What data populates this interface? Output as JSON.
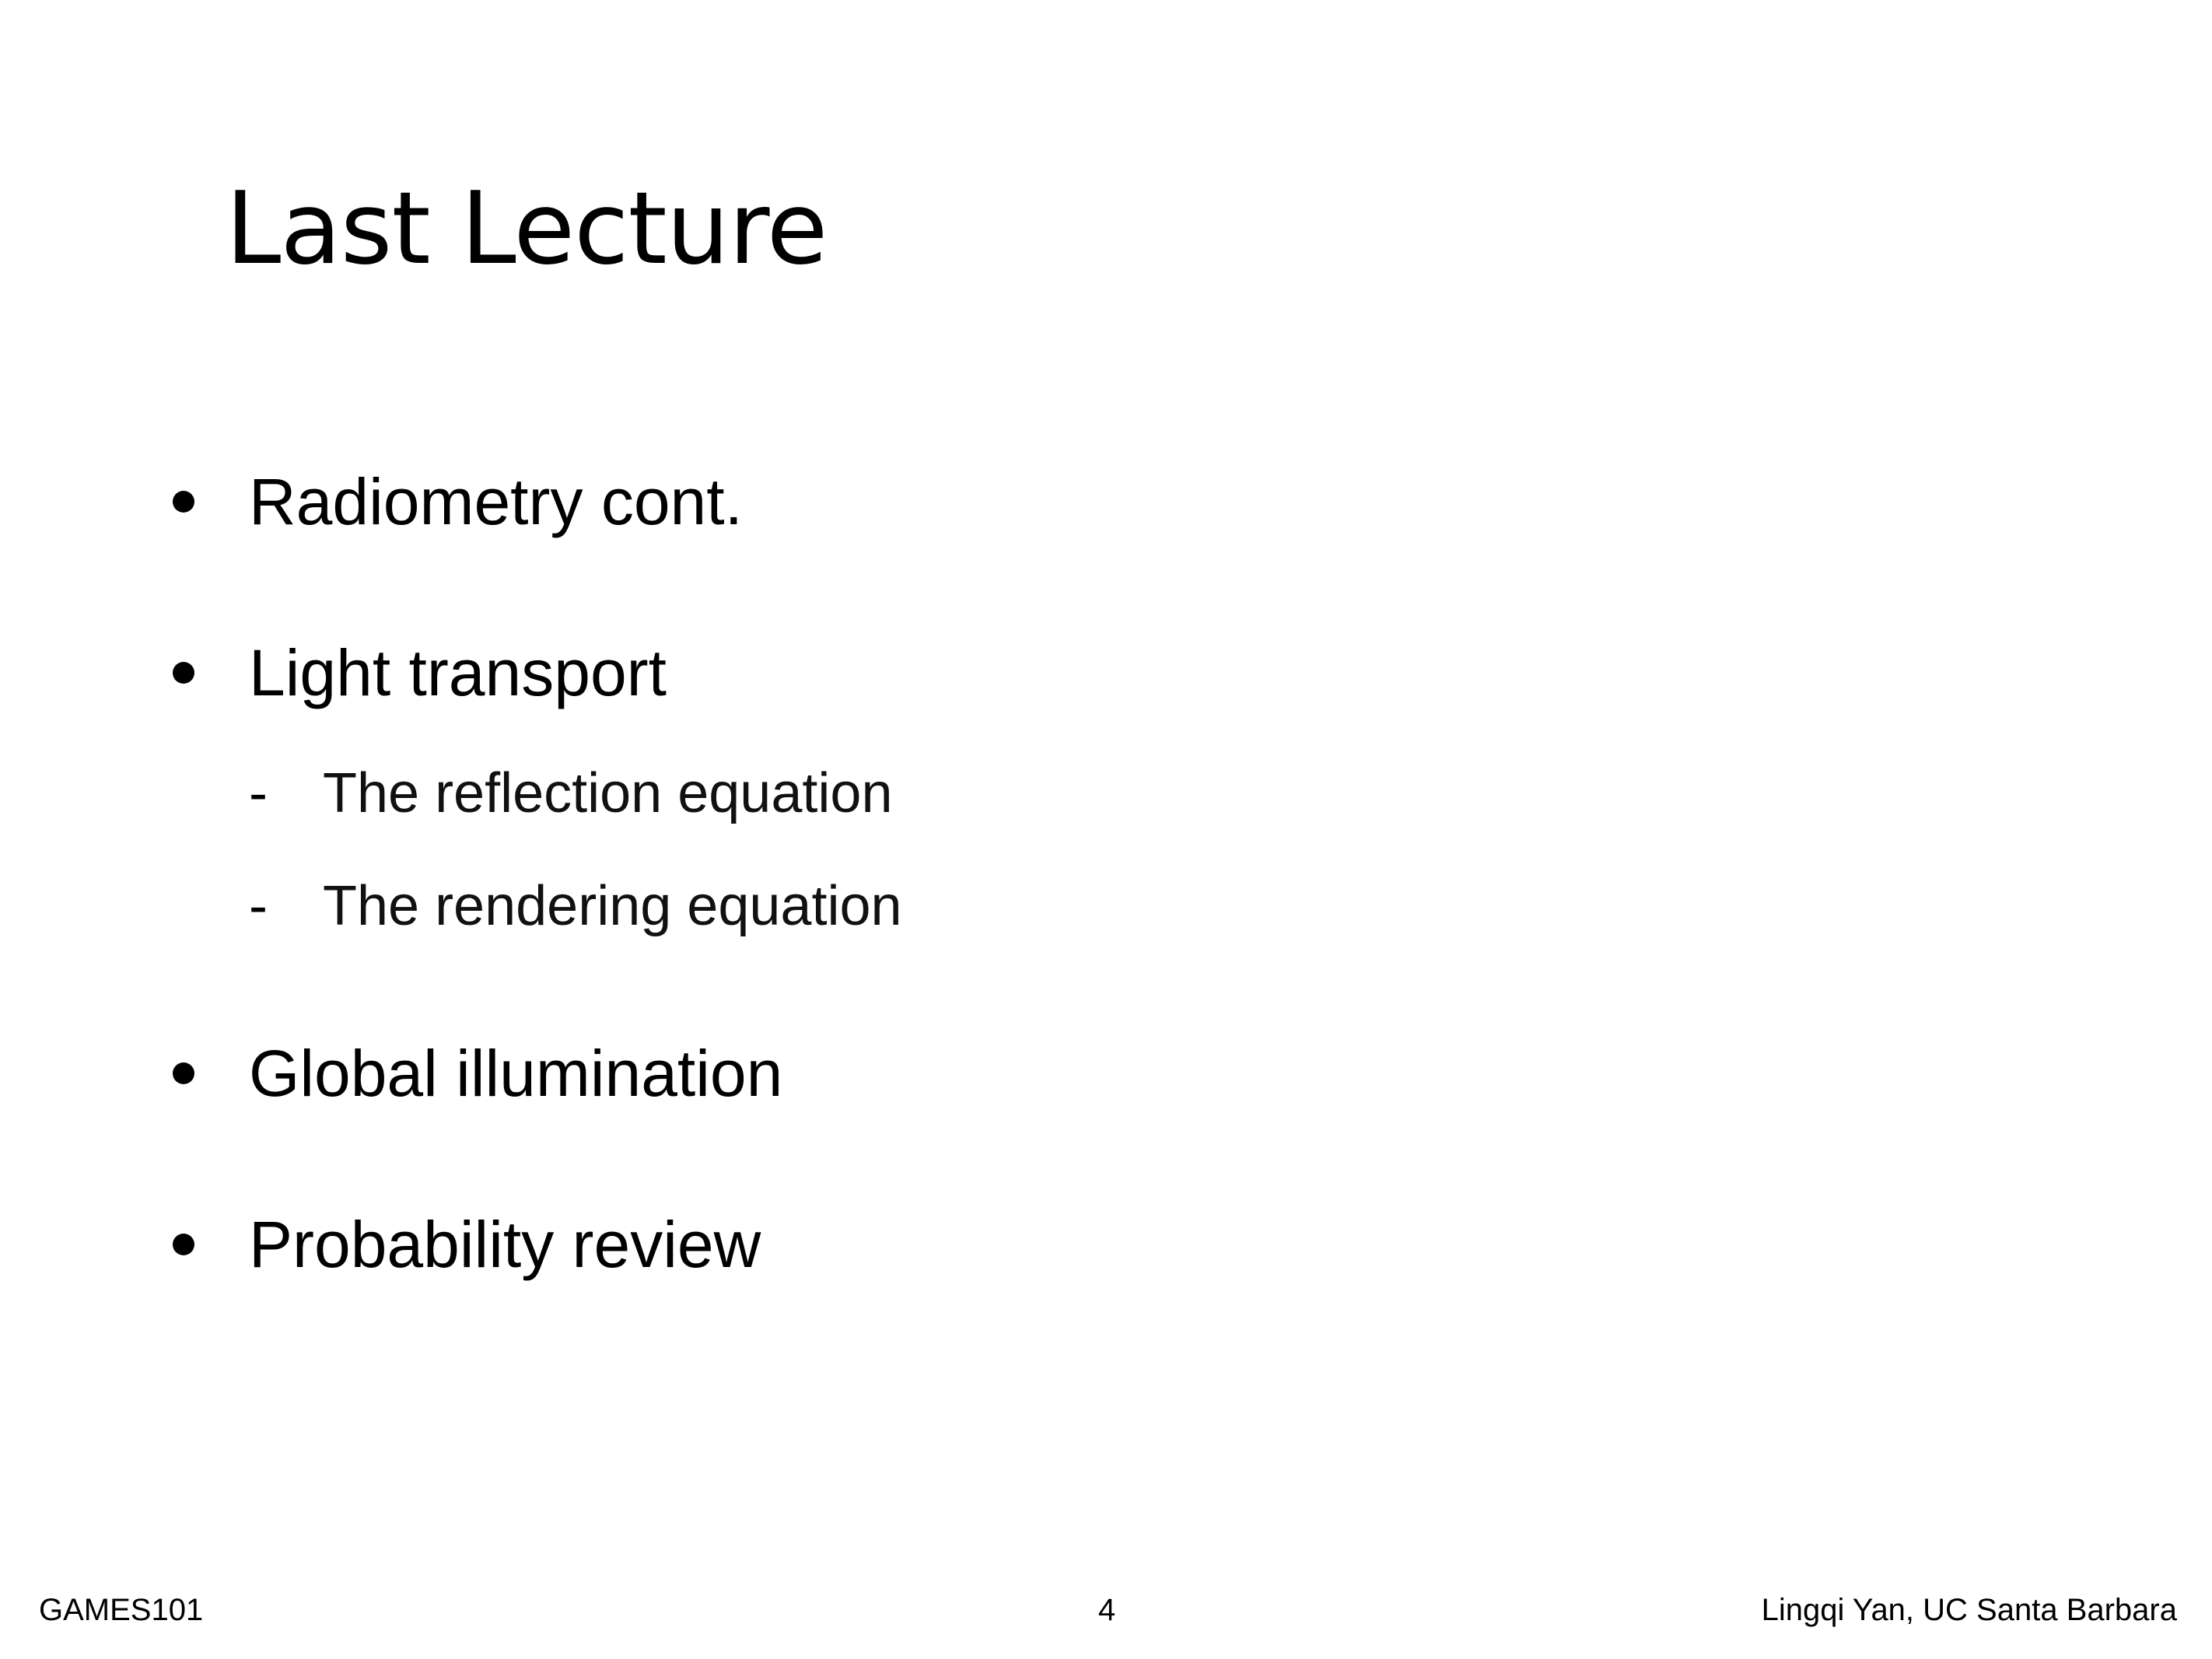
{
  "slide": {
    "title": "Last Lecture",
    "bullets": [
      {
        "label": "Radiometry cont."
      },
      {
        "label": "Light transport"
      },
      {
        "label": "Global illumination"
      },
      {
        "label": "Probability review"
      }
    ],
    "sub_bullets": [
      {
        "dash": "-",
        "label": "The reflection equation"
      },
      {
        "dash": "-",
        "label": "The rendering equation"
      }
    ]
  },
  "footer": {
    "left": "GAMES101",
    "page_number": "4",
    "right": "Lingqi Yan, UC Santa Barbara"
  }
}
